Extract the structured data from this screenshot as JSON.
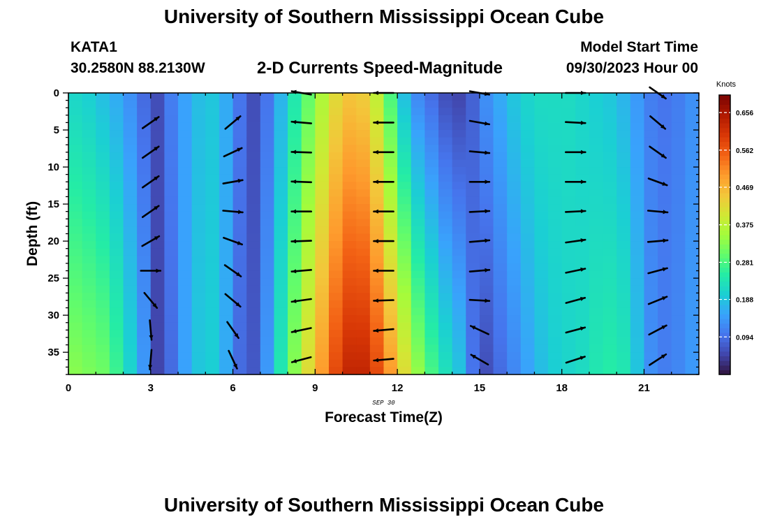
{
  "header": {
    "title": "University of Southern Mississippi Ocean Cube",
    "station_id": "KATA1",
    "station_coords": "30.2580N  88.2130W",
    "plot_title": "2-D Currents Speed-Magnitude",
    "model_start_label": "Model Start Time",
    "model_start_value": "09/30/2023 Hour 00",
    "repeat_title": "University of Southern Mississippi Ocean Cube"
  },
  "chart_data": {
    "type": "heatmap",
    "title": "2-D Currents Speed-Magnitude",
    "xlabel": "Forecast Time(Z)",
    "ylabel": "Depth (ft)",
    "date_label": "SEP 30",
    "xlim": [
      0,
      23
    ],
    "ylim": [
      0,
      38
    ],
    "y_inverted": true,
    "x_ticks": [
      0,
      3,
      6,
      9,
      12,
      15,
      18,
      21
    ],
    "y_ticks": [
      0,
      5,
      10,
      15,
      20,
      25,
      30,
      35
    ],
    "colorbar": {
      "label": "Knots",
      "min": 0,
      "max": 0.7,
      "ticks": [
        0.094,
        0.188,
        0.281,
        0.375,
        0.469,
        0.562,
        0.656
      ],
      "colormap": [
        "#30123b",
        "#4145ab",
        "#4675ed",
        "#39a2fc",
        "#1bcfd4",
        "#24eca6",
        "#61fc6c",
        "#a4fc3b",
        "#d1e834",
        "#f3c63a",
        "#fe9b2d",
        "#f36315",
        "#d93806",
        "#b11901",
        "#7a0402"
      ]
    },
    "hours": [
      0,
      0.5,
      1,
      1.5,
      2,
      2.5,
      3,
      3.5,
      4,
      4.5,
      5,
      5.5,
      6,
      6.5,
      7,
      7.5,
      8,
      8.5,
      9,
      9.5,
      10,
      10.5,
      11,
      11.5,
      12,
      12.5,
      13,
      13.5,
      14,
      14.5,
      15,
      15.5,
      16,
      16.5,
      17,
      17.5,
      18,
      18.5,
      19,
      19.5,
      20,
      20.5,
      21,
      21.5,
      22,
      22.5
    ],
    "speed_profile_knots": [
      {
        "hour": 0,
        "surface": 0.21,
        "bottom": 0.33
      },
      {
        "hour": 0.5,
        "surface": 0.2,
        "bottom": 0.32
      },
      {
        "hour": 1,
        "surface": 0.18,
        "bottom": 0.31
      },
      {
        "hour": 1.5,
        "surface": 0.16,
        "bottom": 0.27
      },
      {
        "hour": 2,
        "surface": 0.13,
        "bottom": 0.21
      },
      {
        "hour": 2.5,
        "surface": 0.09,
        "bottom": 0.14
      },
      {
        "hour": 3,
        "surface": 0.06,
        "bottom": 0.05
      },
      {
        "hour": 3.5,
        "surface": 0.11,
        "bottom": 0.09
      },
      {
        "hour": 4,
        "surface": 0.15,
        "bottom": 0.15
      },
      {
        "hour": 4.5,
        "surface": 0.18,
        "bottom": 0.19
      },
      {
        "hour": 5,
        "surface": 0.19,
        "bottom": 0.2
      },
      {
        "hour": 5.5,
        "surface": 0.16,
        "bottom": 0.16
      },
      {
        "hour": 6,
        "surface": 0.1,
        "bottom": 0.09
      },
      {
        "hour": 6.5,
        "surface": 0.06,
        "bottom": 0.07
      },
      {
        "hour": 7,
        "surface": 0.1,
        "bottom": 0.14
      },
      {
        "hour": 7.5,
        "surface": 0.17,
        "bottom": 0.24
      },
      {
        "hour": 8,
        "surface": 0.24,
        "bottom": 0.33
      },
      {
        "hour": 8.5,
        "surface": 0.3,
        "bottom": 0.42
      },
      {
        "hour": 9,
        "surface": 0.36,
        "bottom": 0.5
      },
      {
        "hour": 9.5,
        "surface": 0.42,
        "bottom": 0.58
      },
      {
        "hour": 10,
        "surface": 0.45,
        "bottom": 0.63
      },
      {
        "hour": 10.5,
        "surface": 0.44,
        "bottom": 0.63
      },
      {
        "hour": 11,
        "surface": 0.38,
        "bottom": 0.58
      },
      {
        "hour": 11.5,
        "surface": 0.28,
        "bottom": 0.5
      },
      {
        "hour": 12,
        "surface": 0.18,
        "bottom": 0.42
      },
      {
        "hour": 12.5,
        "surface": 0.12,
        "bottom": 0.34
      },
      {
        "hour": 13,
        "surface": 0.09,
        "bottom": 0.28
      },
      {
        "hour": 13.5,
        "surface": 0.06,
        "bottom": 0.23
      },
      {
        "hour": 14,
        "surface": 0.05,
        "bottom": 0.19
      },
      {
        "hour": 14.5,
        "surface": 0.08,
        "bottom": 0.1
      },
      {
        "hour": 15,
        "surface": 0.13,
        "bottom": 0.06
      },
      {
        "hour": 15.5,
        "surface": 0.16,
        "bottom": 0.09
      },
      {
        "hour": 16,
        "surface": 0.19,
        "bottom": 0.12
      },
      {
        "hour": 16.5,
        "surface": 0.21,
        "bottom": 0.15
      },
      {
        "hour": 17,
        "surface": 0.22,
        "bottom": 0.18
      },
      {
        "hour": 17.5,
        "surface": 0.22,
        "bottom": 0.2
      },
      {
        "hour": 18,
        "surface": 0.22,
        "bottom": 0.21
      },
      {
        "hour": 18.5,
        "surface": 0.21,
        "bottom": 0.22
      },
      {
        "hour": 19,
        "surface": 0.2,
        "bottom": 0.24
      },
      {
        "hour": 19.5,
        "surface": 0.19,
        "bottom": 0.25
      },
      {
        "hour": 20,
        "surface": 0.17,
        "bottom": 0.24
      },
      {
        "hour": 20.5,
        "surface": 0.14,
        "bottom": 0.19
      },
      {
        "hour": 21,
        "surface": 0.11,
        "bottom": 0.13
      },
      {
        "hour": 21.5,
        "surface": 0.1,
        "bottom": 0.11
      },
      {
        "hour": 22,
        "surface": 0.11,
        "bottom": 0.12
      },
      {
        "hour": 22.5,
        "surface": 0.13,
        "bottom": 0.14
      }
    ],
    "vector_depths_ft": [
      0,
      4,
      8,
      12,
      16,
      20,
      24,
      28,
      32,
      36
    ],
    "vectors": [
      {
        "hour": 3,
        "dirs_deg": [
          null,
          35,
          35,
          35,
          35,
          30,
          0,
          -50,
          -85,
          -95
        ]
      },
      {
        "hour": 6,
        "dirs_deg": [
          null,
          40,
          25,
          10,
          -5,
          -20,
          -35,
          -40,
          -55,
          -65
        ]
      },
      {
        "hour": 8.5,
        "dirs_deg": [
          170,
          175,
          178,
          178,
          180,
          182,
          185,
          188,
          192,
          195
        ]
      },
      {
        "hour": 11.5,
        "dirs_deg": [
          180,
          180,
          180,
          180,
          180,
          180,
          180,
          182,
          185,
          185
        ]
      },
      {
        "hour": 15,
        "dirs_deg": [
          -10,
          -10,
          -5,
          0,
          3,
          5,
          5,
          -3,
          155,
          150
        ]
      },
      {
        "hour": 18.5,
        "dirs_deg": [
          0,
          -3,
          0,
          0,
          3,
          8,
          12,
          15,
          15,
          18
        ]
      },
      {
        "hour": 21.5,
        "dirs_deg": [
          -35,
          -40,
          -35,
          -20,
          -5,
          5,
          15,
          22,
          28,
          33
        ]
      }
    ]
  }
}
